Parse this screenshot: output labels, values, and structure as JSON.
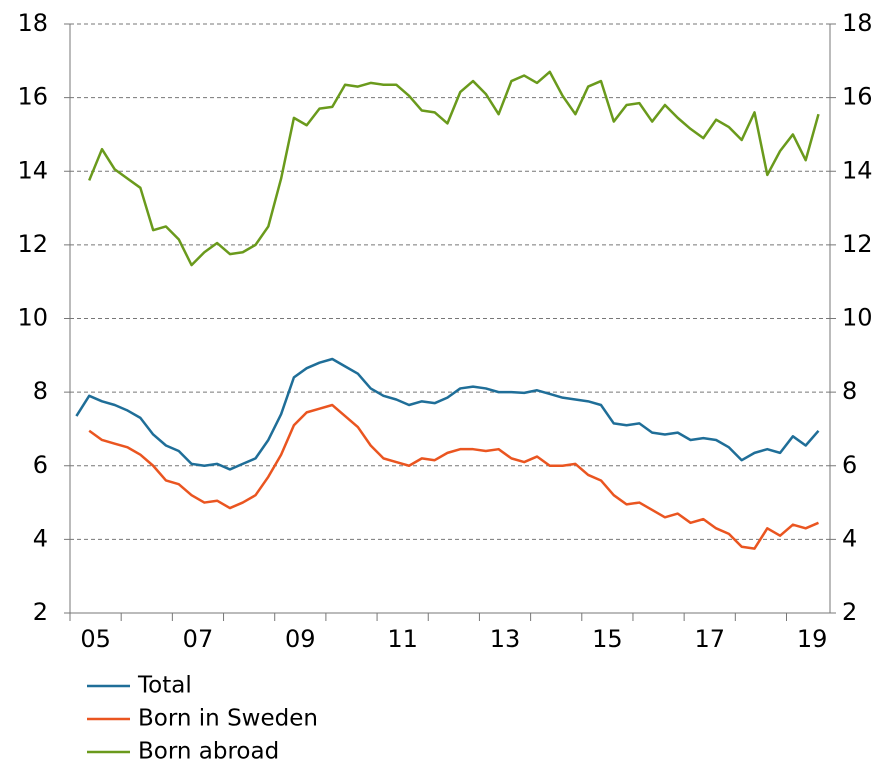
{
  "chart_data": {
    "type": "line",
    "x": [
      2005.125,
      2005.375,
      2005.625,
      2005.875,
      2006.125,
      2006.375,
      2006.625,
      2006.875,
      2007.125,
      2007.375,
      2007.625,
      2007.875,
      2008.125,
      2008.375,
      2008.625,
      2008.875,
      2009.125,
      2009.375,
      2009.625,
      2009.875,
      2010.125,
      2010.375,
      2010.625,
      2010.875,
      2011.125,
      2011.375,
      2011.625,
      2011.875,
      2012.125,
      2012.375,
      2012.625,
      2012.875,
      2013.125,
      2013.375,
      2013.625,
      2013.875,
      2014.125,
      2014.375,
      2014.625,
      2014.875,
      2015.125,
      2015.375,
      2015.625,
      2015.875,
      2016.125,
      2016.375,
      2016.625,
      2016.875,
      2017.125,
      2017.375,
      2017.625,
      2017.875,
      2018.125,
      2018.375,
      2018.625,
      2018.875,
      2019.125,
      2019.375,
      2019.625
    ],
    "series": [
      {
        "name": "Total",
        "color": "#1f6e98",
        "values": [
          7.35,
          7.9,
          7.75,
          7.65,
          7.5,
          7.3,
          6.85,
          6.55,
          6.4,
          6.05,
          6.0,
          6.05,
          5.9,
          6.05,
          6.2,
          6.7,
          7.4,
          8.4,
          8.65,
          8.8,
          8.9,
          8.7,
          8.5,
          8.1,
          7.9,
          7.8,
          7.65,
          7.75,
          7.7,
          7.85,
          8.1,
          8.15,
          8.1,
          8.0,
          8.0,
          7.98,
          8.05,
          7.95,
          7.85,
          7.8,
          7.75,
          7.65,
          7.15,
          7.1,
          7.15,
          6.9,
          6.85,
          6.9,
          6.7,
          6.75,
          6.7,
          6.5,
          6.15,
          6.35,
          6.45,
          6.35,
          6.8,
          6.55,
          6.95
        ]
      },
      {
        "name": "Born in Sweden",
        "color": "#ea5520",
        "values": [
          null,
          6.95,
          6.7,
          6.6,
          6.5,
          6.3,
          6.0,
          5.6,
          5.5,
          5.2,
          5.0,
          5.05,
          4.85,
          5.0,
          5.2,
          5.7,
          6.3,
          7.1,
          7.45,
          7.55,
          7.65,
          7.35,
          7.05,
          6.55,
          6.2,
          6.1,
          6.0,
          6.2,
          6.15,
          6.35,
          6.45,
          6.45,
          6.4,
          6.45,
          6.2,
          6.1,
          6.25,
          6.0,
          6.0,
          6.05,
          5.75,
          5.6,
          5.2,
          4.95,
          5.0,
          4.8,
          4.6,
          4.7,
          4.45,
          4.55,
          4.3,
          4.15,
          3.8,
          3.75,
          4.3,
          4.1,
          4.4,
          4.3,
          4.45
        ]
      },
      {
        "name": "Born abroad",
        "color": "#6a9a1c",
        "values": [
          null,
          13.75,
          14.6,
          14.05,
          13.8,
          13.55,
          12.4,
          12.5,
          12.15,
          11.45,
          11.8,
          12.05,
          11.75,
          11.8,
          12.0,
          12.5,
          13.8,
          15.45,
          15.25,
          15.7,
          15.75,
          16.35,
          16.3,
          16.4,
          16.35,
          16.35,
          16.05,
          15.65,
          15.6,
          15.3,
          16.15,
          16.45,
          16.1,
          15.55,
          16.45,
          16.6,
          16.4,
          16.7,
          16.05,
          15.55,
          16.3,
          16.45,
          15.35,
          15.8,
          15.85,
          15.35,
          15.8,
          15.45,
          15.15,
          14.9,
          15.4,
          15.2,
          14.85,
          15.6,
          13.9,
          14.55,
          15.0,
          14.3,
          15.55
        ]
      }
    ],
    "xlim": [
      2005,
      2019.85
    ],
    "xticks": [
      {
        "value": 2005.5,
        "label": "05"
      },
      {
        "value": 2007.5,
        "label": "07"
      },
      {
        "value": 2009.5,
        "label": "09"
      },
      {
        "value": 2011.5,
        "label": "11"
      },
      {
        "value": 2013.5,
        "label": "13"
      },
      {
        "value": 2015.5,
        "label": "15"
      },
      {
        "value": 2017.5,
        "label": "17"
      },
      {
        "value": 2019.5,
        "label": "19"
      }
    ],
    "x_minor_ticks": [
      2005,
      2006,
      2007,
      2008,
      2009,
      2010,
      2011,
      2012,
      2013,
      2014,
      2015,
      2016,
      2017,
      2018,
      2019
    ],
    "ylim": [
      2,
      18
    ],
    "yticks": [
      2,
      4,
      6,
      8,
      10,
      12,
      14,
      16,
      18
    ],
    "y2lim": [
      2,
      18
    ],
    "y2ticks": [
      2,
      4,
      6,
      8,
      10,
      12,
      14,
      16,
      18
    ],
    "grid": true,
    "legend": "bottom-left"
  }
}
